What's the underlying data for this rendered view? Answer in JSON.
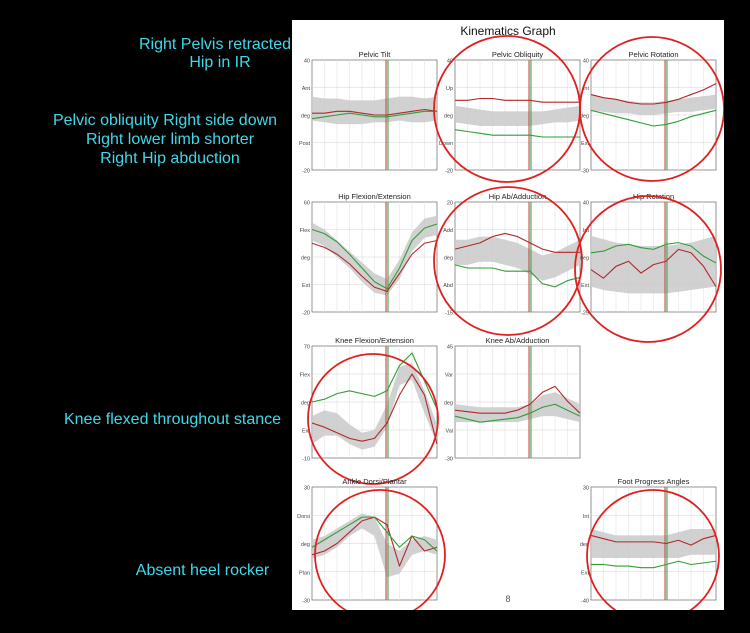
{
  "notes": {
    "pelvis": "Right Pelvis retracted",
    "hip_ir": "Hip in IR",
    "obliquity": "Pelvic obliquity Right side down",
    "limb": "Right lower limb shorter",
    "abduction": "Right Hip abduction",
    "knee": "Knee flexed throughout stance",
    "heel": "Absent heel rocker"
  },
  "sheet": {
    "title": "Kinematics Graph",
    "page_number": "8"
  },
  "colors": {
    "right": "#b0282a",
    "left": "#2f9e34",
    "normal_band": "#c9c9c9",
    "circle": "#e02020",
    "note": "#3fd9ea",
    "toe_off_right": "#c04040",
    "toe_off_left": "#3aa03a"
  },
  "chart_data": [
    {
      "type": "line",
      "title": "Pelvic Tilt",
      "ylim": [
        -20,
        40
      ],
      "tick_labels": [
        "40",
        "Ant",
        "deg",
        "Post",
        "-20"
      ],
      "circled": false,
      "toe_off": 60,
      "x": [
        0,
        10,
        20,
        30,
        40,
        50,
        60,
        70,
        80,
        90,
        100
      ],
      "band": {
        "upper": [
          20,
          19,
          19,
          18,
          18,
          18,
          19,
          20,
          20,
          19,
          20
        ],
        "lower": [
          7,
          6,
          5,
          5,
          5,
          6,
          6,
          7,
          6,
          6,
          7
        ]
      },
      "series": [
        {
          "side": "right",
          "values": [
            11,
            11,
            12,
            12,
            11,
            10,
            10,
            11,
            12,
            13,
            12
          ]
        },
        {
          "side": "left",
          "values": [
            8,
            9,
            10,
            11,
            10,
            9,
            9,
            10,
            11,
            12,
            12
          ]
        }
      ]
    },
    {
      "type": "line",
      "title": "Pelvic Obliquity",
      "ylim": [
        -20,
        40
      ],
      "tick_labels": [
        "40",
        "Up",
        "deg",
        "Down",
        "-20"
      ],
      "circled": true,
      "toe_off": 60,
      "x": [
        0,
        10,
        20,
        30,
        40,
        50,
        60,
        70,
        80,
        90,
        100
      ],
      "band": {
        "upper": [
          15,
          14,
          13,
          12,
          12,
          12,
          12,
          12,
          13,
          14,
          15
        ],
        "lower": [
          6,
          5,
          4,
          4,
          4,
          4,
          4,
          5,
          6,
          6,
          7
        ]
      },
      "series": [
        {
          "side": "right",
          "values": [
            18,
            18,
            19,
            19,
            18,
            18,
            18,
            17,
            17,
            17,
            17
          ]
        },
        {
          "side": "left",
          "values": [
            2,
            1,
            0,
            -1,
            -1,
            -1,
            -1,
            -2,
            -2,
            -2,
            -2
          ]
        }
      ]
    },
    {
      "type": "line",
      "title": "Pelvic Rotation",
      "ylim": [
        -30,
        40
      ],
      "tick_labels": [
        "40",
        "Int",
        "deg",
        "Ext",
        "-30"
      ],
      "circled": true,
      "toe_off": 60,
      "x": [
        0,
        10,
        20,
        30,
        40,
        50,
        60,
        70,
        80,
        90,
        100
      ],
      "band": {
        "upper": [
          18,
          16,
          15,
          14,
          13,
          13,
          14,
          15,
          16,
          17,
          18
        ],
        "lower": [
          8,
          7,
          6,
          6,
          5,
          5,
          6,
          7,
          7,
          8,
          9
        ]
      },
      "series": [
        {
          "side": "right",
          "values": [
            18,
            16,
            15,
            13,
            12,
            12,
            13,
            15,
            18,
            21,
            25
          ]
        },
        {
          "side": "left",
          "values": [
            8,
            6,
            4,
            2,
            0,
            -2,
            -1,
            1,
            4,
            6,
            8
          ]
        }
      ]
    },
    {
      "type": "line",
      "title": "Hip Flexion/Extension",
      "ylim": [
        -20,
        60
      ],
      "tick_labels": [
        "60",
        "Flex",
        "deg",
        "Ext",
        "-20"
      ],
      "circled": false,
      "toe_off": 60,
      "x": [
        0,
        10,
        20,
        30,
        40,
        50,
        60,
        70,
        80,
        90,
        100
      ],
      "band": {
        "upper": [
          45,
          40,
          32,
          24,
          16,
          8,
          4,
          18,
          38,
          48,
          50
        ],
        "lower": [
          32,
          28,
          20,
          12,
          2,
          -6,
          -8,
          4,
          24,
          34,
          36
        ]
      },
      "series": [
        {
          "side": "right",
          "values": [
            30,
            27,
            22,
            15,
            6,
            -2,
            -5,
            8,
            22,
            30,
            32
          ]
        },
        {
          "side": "left",
          "values": [
            40,
            37,
            31,
            22,
            12,
            2,
            -3,
            12,
            32,
            41,
            44
          ]
        }
      ]
    },
    {
      "type": "line",
      "title": "Hip Ab/Adduction",
      "ylim": [
        -15,
        20
      ],
      "tick_labels": [
        "20",
        "Add",
        "deg",
        "Abd",
        "-15"
      ],
      "circled": true,
      "toe_off": 60,
      "x": [
        0,
        10,
        20,
        30,
        40,
        50,
        60,
        70,
        80,
        90,
        100
      ],
      "band": {
        "upper": [
          8,
          8,
          9,
          9,
          8,
          7,
          5,
          3,
          4,
          6,
          8
        ],
        "lower": [
          0,
          0,
          1,
          1,
          0,
          -1,
          -3,
          -5,
          -4,
          -2,
          0
        ]
      },
      "series": [
        {
          "side": "right",
          "values": [
            5,
            6,
            7,
            9,
            10,
            9,
            7,
            5,
            4,
            4,
            4
          ]
        },
        {
          "side": "left",
          "values": [
            0,
            -1,
            -1,
            -1,
            -2,
            -2,
            -2,
            -6,
            -7,
            -5,
            -4
          ]
        }
      ]
    },
    {
      "type": "line",
      "title": "Hip Rotation",
      "ylim": [
        -25,
        40
      ],
      "tick_labels": [
        "40",
        "Int",
        "deg",
        "Ext",
        "-25"
      ],
      "circled": true,
      "toe_off": 60,
      "x": [
        0,
        10,
        20,
        30,
        40,
        50,
        60,
        70,
        80,
        90,
        100
      ],
      "band": {
        "upper": [
          20,
          18,
          16,
          15,
          14,
          14,
          14,
          15,
          16,
          18,
          20
        ],
        "lower": [
          -10,
          -12,
          -13,
          -14,
          -14,
          -14,
          -14,
          -13,
          -12,
          -11,
          -10
        ]
      },
      "series": [
        {
          "side": "right",
          "values": [
            0,
            -5,
            2,
            5,
            -2,
            3,
            5,
            12,
            10,
            2,
            -10
          ]
        },
        {
          "side": "left",
          "values": [
            10,
            11,
            14,
            15,
            13,
            12,
            15,
            16,
            14,
            8,
            4
          ]
        }
      ]
    },
    {
      "type": "line",
      "title": "Knee Flexion/Extension",
      "ylim": [
        -10,
        70
      ],
      "tick_labels": [
        "70",
        "Flex",
        "deg",
        "Ext",
        "-10"
      ],
      "circled": true,
      "toe_off": 60,
      "x": [
        0,
        10,
        20,
        30,
        40,
        50,
        60,
        70,
        80,
        90,
        100
      ],
      "band": {
        "upper": [
          20,
          24,
          22,
          14,
          8,
          10,
          28,
          55,
          58,
          38,
          14
        ],
        "lower": [
          0,
          6,
          6,
          0,
          -4,
          -2,
          12,
          42,
          46,
          22,
          0
        ]
      },
      "series": [
        {
          "side": "right",
          "values": [
            15,
            12,
            8,
            4,
            2,
            4,
            15,
            35,
            50,
            35,
            0
          ]
        },
        {
          "side": "left",
          "values": [
            30,
            32,
            36,
            38,
            36,
            34,
            38,
            56,
            65,
            45,
            25
          ]
        }
      ]
    },
    {
      "type": "line",
      "title": "Knee Ab/Adduction",
      "ylim": [
        -30,
        45
      ],
      "tick_labels": [
        "45",
        "Var",
        "deg",
        "Val",
        "-30"
      ],
      "circled": false,
      "toe_off": 60,
      "x": [
        0,
        10,
        20,
        30,
        40,
        50,
        60,
        70,
        80,
        90,
        100
      ],
      "band": {
        "upper": [
          6,
          5,
          4,
          4,
          4,
          4,
          6,
          12,
          14,
          10,
          6
        ],
        "lower": [
          -6,
          -6,
          -6,
          -6,
          -6,
          -6,
          -4,
          -2,
          -2,
          -4,
          -6
        ]
      },
      "series": [
        {
          "side": "right",
          "values": [
            2,
            1,
            0,
            0,
            0,
            2,
            6,
            14,
            18,
            8,
            0
          ]
        },
        {
          "side": "left",
          "values": [
            -2,
            -4,
            -6,
            -5,
            -4,
            -3,
            0,
            4,
            6,
            2,
            -2
          ]
        }
      ]
    },
    {
      "type": "line",
      "title": "Ankle Dorsi/Plantar",
      "ylim": [
        -30,
        30
      ],
      "tick_labels": [
        "30",
        "Dorsi",
        "deg",
        "Plan",
        "-30"
      ],
      "circled": true,
      "toe_off": 60,
      "x": [
        0,
        10,
        20,
        30,
        40,
        50,
        60,
        70,
        80,
        90,
        100
      ],
      "band": {
        "upper": [
          2,
          4,
          8,
          12,
          16,
          14,
          0,
          -4,
          2,
          4,
          2
        ],
        "lower": [
          -8,
          -6,
          -2,
          4,
          8,
          4,
          -18,
          -16,
          -6,
          -4,
          -6
        ]
      },
      "series": [
        {
          "side": "right",
          "values": [
            -6,
            -4,
            0,
            6,
            12,
            14,
            10,
            -12,
            4,
            -4,
            -2
          ]
        },
        {
          "side": "left",
          "values": [
            -2,
            2,
            6,
            10,
            14,
            14,
            6,
            -2,
            4,
            2,
            -4
          ]
        }
      ]
    },
    {
      "type": "line",
      "title": "Foot Progress Angles",
      "ylim": [
        -40,
        30
      ],
      "tick_labels": [
        "30",
        "Int",
        "deg",
        "Ext",
        "-40"
      ],
      "circled": true,
      "toe_off": 60,
      "x": [
        0,
        10,
        20,
        30,
        40,
        50,
        60,
        70,
        80,
        90,
        100
      ],
      "band": {
        "upper": [
          4,
          2,
          0,
          0,
          0,
          0,
          0,
          2,
          4,
          4,
          4
        ],
        "lower": [
          -14,
          -14,
          -14,
          -14,
          -14,
          -14,
          -14,
          -14,
          -12,
          -12,
          -12
        ]
      },
      "series": [
        {
          "side": "right",
          "values": [
            0,
            -2,
            -4,
            -4,
            -4,
            -4,
            -5,
            -3,
            -6,
            -2,
            0
          ]
        },
        {
          "side": "left",
          "values": [
            -18,
            -18,
            -19,
            -19,
            -20,
            -20,
            -18,
            -16,
            -18,
            -17,
            -16
          ]
        }
      ]
    }
  ]
}
